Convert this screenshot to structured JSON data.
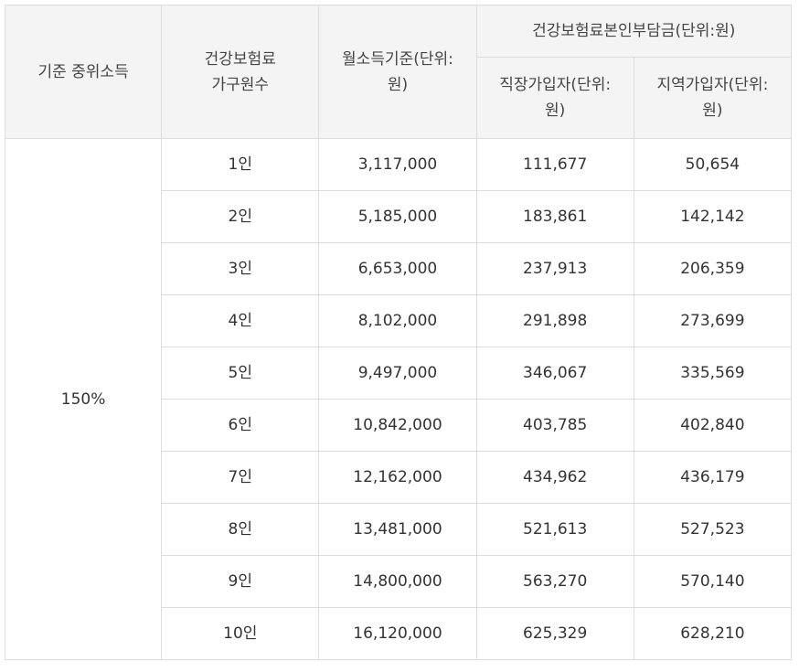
{
  "header": {
    "criteria": "기준 중위소득",
    "household": "건강보험료\n가구원수",
    "monthly_income": "월소득기준(단위:\n원)",
    "premium_group": "건강보험료본인부담금(단위:원)",
    "employee": "직장가입자(단위:\n원)",
    "regional": "지역가입자(단위:\n원)"
  },
  "criteria_value": "150%",
  "rows": [
    {
      "household": "1인",
      "income": "3,117,000",
      "employee": "111,677",
      "regional": "50,654"
    },
    {
      "household": "2인",
      "income": "5,185,000",
      "employee": "183,861",
      "regional": "142,142"
    },
    {
      "household": "3인",
      "income": "6,653,000",
      "employee": "237,913",
      "regional": "206,359"
    },
    {
      "household": "4인",
      "income": "8,102,000",
      "employee": "291,898",
      "regional": "273,699"
    },
    {
      "household": "5인",
      "income": "9,497,000",
      "employee": "346,067",
      "regional": "335,569"
    },
    {
      "household": "6인",
      "income": "10,842,000",
      "employee": "403,785",
      "regional": "402,840"
    },
    {
      "household": "7인",
      "income": "12,162,000",
      "employee": "434,962",
      "regional": "436,179"
    },
    {
      "household": "8인",
      "income": "13,481,000",
      "employee": "521,613",
      "regional": "527,523"
    },
    {
      "household": "9인",
      "income": "14,800,000",
      "employee": "563,270",
      "regional": "570,140"
    },
    {
      "household": "10인",
      "income": "16,120,000",
      "employee": "625,329",
      "regional": "628,210"
    }
  ]
}
